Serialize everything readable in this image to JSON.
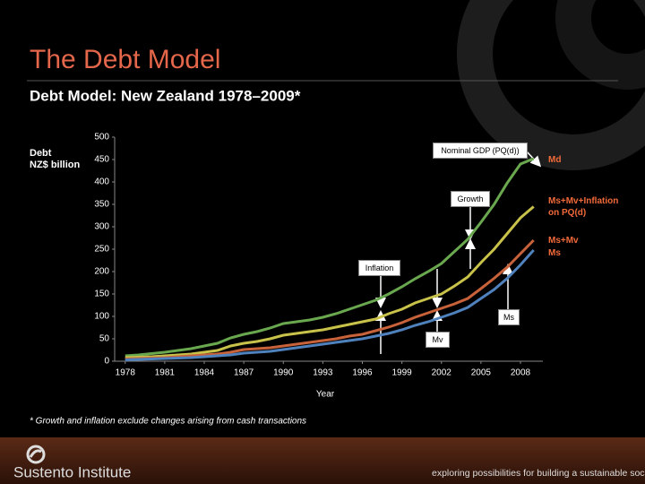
{
  "header": {
    "title": "The Debt Model",
    "subtitle": "Debt Model: New Zealand 1978–2009*"
  },
  "chart_data": {
    "type": "line",
    "y_label": [
      "Debt",
      "NZ$ billion"
    ],
    "x_label": "Year",
    "x": [
      1978,
      1979,
      1980,
      1981,
      1982,
      1983,
      1984,
      1985,
      1986,
      1987,
      1988,
      1989,
      1990,
      1991,
      1992,
      1993,
      1994,
      1995,
      1996,
      1997,
      1998,
      1999,
      2000,
      2001,
      2002,
      2003,
      2004,
      2005,
      2006,
      2007,
      2008,
      2009
    ],
    "xlim": [
      1977.2,
      2009.7
    ],
    "xticks": [
      1978,
      1981,
      1984,
      1987,
      1990,
      1993,
      1996,
      1999,
      2002,
      2005,
      2008
    ],
    "ylim": [
      0,
      500
    ],
    "yticks": [
      0,
      50,
      100,
      150,
      200,
      250,
      300,
      350,
      400,
      450,
      500
    ],
    "series": [
      {
        "name": "Md",
        "color": "#6aa84f",
        "values": [
          12,
          14,
          17,
          20,
          24,
          28,
          34,
          40,
          52,
          60,
          66,
          74,
          84,
          88,
          92,
          98,
          106,
          116,
          126,
          136,
          150,
          166,
          184,
          200,
          218,
          245,
          272,
          310,
          350,
          398,
          440,
          452
        ]
      },
      {
        "name": "Ms+Mv+Inflation on PQ(d)",
        "color": "#c9c24a",
        "values": [
          8,
          9,
          10,
          12,
          14,
          16,
          20,
          24,
          34,
          40,
          44,
          50,
          58,
          62,
          66,
          70,
          76,
          82,
          88,
          94,
          106,
          116,
          130,
          140,
          150,
          168,
          188,
          220,
          250,
          285,
          320,
          345
        ]
      },
      {
        "name": "Ms+Mv",
        "color": "#c8623a",
        "values": [
          5,
          6,
          7,
          8,
          10,
          12,
          14,
          16,
          20,
          26,
          28,
          30,
          34,
          38,
          42,
          46,
          50,
          56,
          60,
          68,
          76,
          86,
          98,
          108,
          118,
          128,
          140,
          162,
          185,
          210,
          240,
          270
        ]
      },
      {
        "name": "Ms",
        "color": "#4f81bd",
        "values": [
          3,
          4,
          5,
          6,
          7,
          8,
          10,
          12,
          14,
          18,
          20,
          22,
          26,
          30,
          34,
          38,
          42,
          46,
          50,
          56,
          62,
          70,
          80,
          88,
          98,
          108,
          120,
          140,
          160,
          185,
          215,
          248
        ]
      }
    ],
    "annotations": [
      "Nominal GDP (PQ(d))",
      "Growth",
      "Inflation",
      "Ms",
      "Mv"
    ],
    "footnote": "* Growth and inflation exclude changes arising from cash transactions"
  },
  "footer": {
    "brand": "Sustento Institute",
    "tagline": "exploring possibilities for building a sustainable society"
  }
}
